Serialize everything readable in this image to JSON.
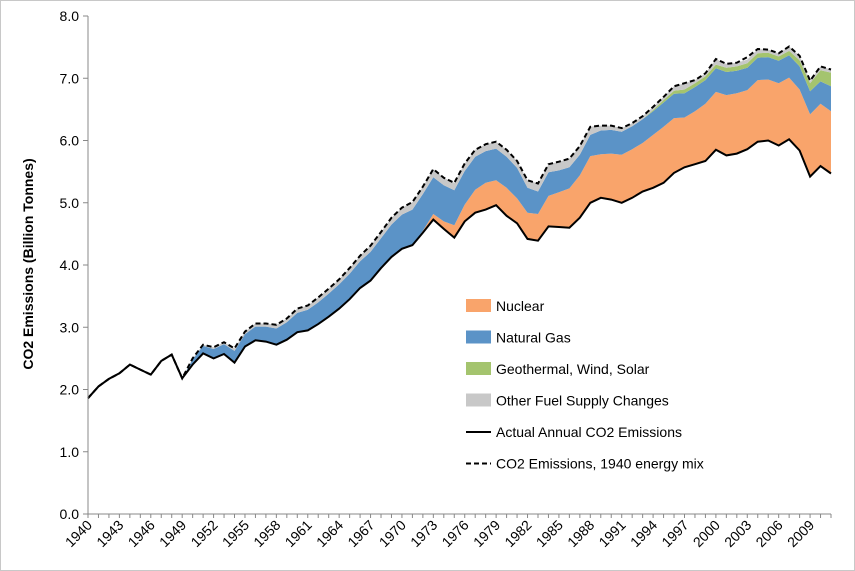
{
  "chart_data": {
    "type": "area",
    "title": "",
    "xlabel": "",
    "ylabel": "CO2 Emissions (Billion Tonnes)",
    "ylim": [
      0,
      8
    ],
    "xlim": [
      1940,
      2011
    ],
    "yticks": [
      "0.0",
      "1.0",
      "2.0",
      "3.0",
      "4.0",
      "5.0",
      "6.0",
      "7.0",
      "8.0"
    ],
    "xticks": [
      "1940",
      "1943",
      "1946",
      "1949",
      "1952",
      "1955",
      "1958",
      "1961",
      "1964",
      "1967",
      "1970",
      "1973",
      "1976",
      "1979",
      "1982",
      "1985",
      "1988",
      "1991",
      "1994",
      "1997",
      "2000",
      "2003",
      "2006",
      "2009"
    ],
    "grid": false,
    "legend_position": "center-right",
    "colors": {
      "nuclear": "#f9a46b",
      "gas": "#5b93c7",
      "renew": "#a4c46e",
      "other": "#c8c8c8",
      "actual": "#000000",
      "mix": "#000000"
    },
    "series": [
      {
        "key": "actual",
        "name": "Actual Annual CO2 Emissions",
        "x": [
          1940,
          1941,
          1942,
          1943,
          1944,
          1945,
          1946,
          1947,
          1948,
          1949,
          1950,
          1951,
          1952,
          1953,
          1954,
          1955,
          1956,
          1957,
          1958,
          1959,
          1960,
          1961,
          1962,
          1963,
          1964,
          1965,
          1966,
          1967,
          1968,
          1969,
          1970,
          1971,
          1972,
          1973,
          1974,
          1975,
          1976,
          1977,
          1978,
          1979,
          1980,
          1981,
          1982,
          1983,
          1984,
          1985,
          1986,
          1987,
          1988,
          1989,
          1990,
          1991,
          1992,
          1993,
          1994,
          1995,
          1996,
          1997,
          1998,
          1999,
          2000,
          2001,
          2002,
          2003,
          2004,
          2005,
          2006,
          2007,
          2008,
          2009,
          2010,
          2011
        ],
        "values": [
          1.86,
          2.05,
          2.17,
          2.26,
          2.4,
          2.32,
          2.24,
          2.46,
          2.56,
          2.18,
          2.4,
          2.58,
          2.5,
          2.57,
          2.43,
          2.69,
          2.79,
          2.77,
          2.72,
          2.8,
          2.92,
          2.95,
          3.05,
          3.17,
          3.3,
          3.45,
          3.63,
          3.75,
          3.95,
          4.13,
          4.26,
          4.32,
          4.52,
          4.73,
          4.58,
          4.44,
          4.7,
          4.84,
          4.89,
          4.96,
          4.79,
          4.67,
          4.42,
          4.39,
          4.62,
          4.61,
          4.6,
          4.76,
          5.0,
          5.08,
          5.05,
          5.0,
          5.08,
          5.18,
          5.24,
          5.32,
          5.48,
          5.57,
          5.62,
          5.67,
          5.85,
          5.76,
          5.79,
          5.86,
          5.98,
          6.0,
          5.92,
          6.02,
          5.84,
          5.42,
          5.59,
          5.47
        ]
      },
      {
        "key": "nuclear",
        "name": "Nuclear",
        "values": [
          0,
          0,
          0,
          0,
          0,
          0,
          0,
          0,
          0,
          0,
          0,
          0,
          0,
          0,
          0,
          0,
          0,
          0,
          0,
          0,
          0,
          0,
          0,
          0,
          0,
          0,
          0,
          0,
          0,
          0,
          0,
          0,
          0.03,
          0.09,
          0.12,
          0.2,
          0.27,
          0.37,
          0.43,
          0.4,
          0.45,
          0.4,
          0.42,
          0.43,
          0.49,
          0.56,
          0.63,
          0.68,
          0.75,
          0.7,
          0.74,
          0.77,
          0.78,
          0.78,
          0.85,
          0.9,
          0.88,
          0.8,
          0.85,
          0.92,
          0.93,
          0.97,
          0.97,
          0.95,
          0.99,
          0.98,
          1.0,
          0.99,
          0.98,
          1.0,
          1.0,
          1.0
        ]
      },
      {
        "key": "gas",
        "name": "Natural Gas",
        "values": [
          0,
          0,
          0,
          0,
          0,
          0,
          0,
          0,
          0,
          0,
          0.08,
          0.12,
          0.15,
          0.16,
          0.19,
          0.2,
          0.22,
          0.24,
          0.26,
          0.28,
          0.31,
          0.33,
          0.35,
          0.37,
          0.39,
          0.41,
          0.43,
          0.46,
          0.48,
          0.52,
          0.55,
          0.57,
          0.59,
          0.59,
          0.58,
          0.56,
          0.54,
          0.53,
          0.51,
          0.51,
          0.5,
          0.49,
          0.4,
          0.36,
          0.38,
          0.35,
          0.34,
          0.33,
          0.34,
          0.38,
          0.38,
          0.37,
          0.37,
          0.38,
          0.38,
          0.39,
          0.39,
          0.39,
          0.39,
          0.38,
          0.38,
          0.37,
          0.36,
          0.36,
          0.36,
          0.36,
          0.36,
          0.36,
          0.37,
          0.37,
          0.36,
          0.4
        ]
      },
      {
        "key": "renew",
        "name": "Geothermal, Wind, Solar",
        "values": [
          0,
          0,
          0,
          0,
          0,
          0,
          0,
          0,
          0,
          0,
          0,
          0,
          0,
          0,
          0,
          0,
          0,
          0,
          0,
          0,
          0,
          0,
          0,
          0,
          0,
          0,
          0,
          0,
          0,
          0,
          0,
          0,
          0,
          0,
          0,
          0,
          0,
          0,
          0,
          0,
          0,
          0,
          0,
          0,
          0,
          0,
          0,
          0,
          0,
          0,
          0,
          0,
          0,
          0,
          0.02,
          0.04,
          0.05,
          0.06,
          0.06,
          0.06,
          0.06,
          0.07,
          0.07,
          0.07,
          0.07,
          0.07,
          0.07,
          0.07,
          0.1,
          0.13,
          0.18,
          0.22
        ]
      },
      {
        "key": "other",
        "name": "Other Fuel Supply Changes",
        "values": [
          0,
          0,
          0,
          0,
          0,
          0,
          0,
          0,
          0,
          0,
          0.02,
          0.02,
          0.03,
          0.03,
          0.04,
          0.04,
          0.05,
          0.05,
          0.06,
          0.06,
          0.07,
          0.07,
          0.08,
          0.08,
          0.08,
          0.09,
          0.09,
          0.1,
          0.1,
          0.11,
          0.11,
          0.12,
          0.12,
          0.13,
          0.12,
          0.12,
          0.12,
          0.11,
          0.11,
          0.11,
          0.11,
          0.11,
          0.12,
          0.13,
          0.13,
          0.14,
          0.14,
          0.14,
          0.13,
          0.08,
          0.07,
          0.06,
          0.05,
          0.05,
          0.05,
          0.05,
          0.07,
          0.1,
          0.05,
          0.05,
          0.09,
          0.06,
          0.06,
          0.06,
          0.07,
          0.05,
          0.05,
          0.07,
          0.07,
          0.04,
          0.06,
          0.05
        ]
      },
      {
        "key": "mix",
        "name": "CO2 Emissions, 1940 energy mix",
        "values": [
          1.86,
          2.05,
          2.17,
          2.26,
          2.4,
          2.32,
          2.24,
          2.46,
          2.56,
          2.18,
          2.5,
          2.72,
          2.68,
          2.76,
          2.66,
          2.93,
          3.06,
          3.06,
          3.04,
          3.14,
          3.3,
          3.35,
          3.48,
          3.62,
          3.77,
          3.95,
          4.15,
          4.31,
          4.53,
          4.76,
          4.92,
          5.01,
          5.26,
          5.54,
          5.4,
          5.32,
          5.63,
          5.85,
          5.94,
          5.98,
          5.85,
          5.67,
          5.36,
          5.31,
          5.62,
          5.66,
          5.71,
          5.91,
          6.22,
          6.24,
          6.24,
          6.2,
          6.28,
          6.39,
          6.54,
          6.7,
          6.87,
          6.92,
          6.97,
          7.08,
          7.31,
          7.23,
          7.25,
          7.34,
          7.47,
          7.46,
          7.4,
          7.51,
          7.36,
          6.96,
          7.19,
          7.14
        ]
      }
    ],
    "legend": [
      {
        "key": "nuclear",
        "label": "Nuclear",
        "kind": "fill"
      },
      {
        "key": "gas",
        "label": "Natural Gas",
        "kind": "fill"
      },
      {
        "key": "renew",
        "label": "Geothermal, Wind, Solar",
        "kind": "fill"
      },
      {
        "key": "other",
        "label": "Other Fuel Supply Changes",
        "kind": "fill"
      },
      {
        "key": "actual",
        "label": "Actual Annual CO2 Emissions",
        "kind": "line"
      },
      {
        "key": "mix",
        "label": "CO2 Emissions, 1940 energy mix",
        "kind": "dashed"
      }
    ]
  }
}
